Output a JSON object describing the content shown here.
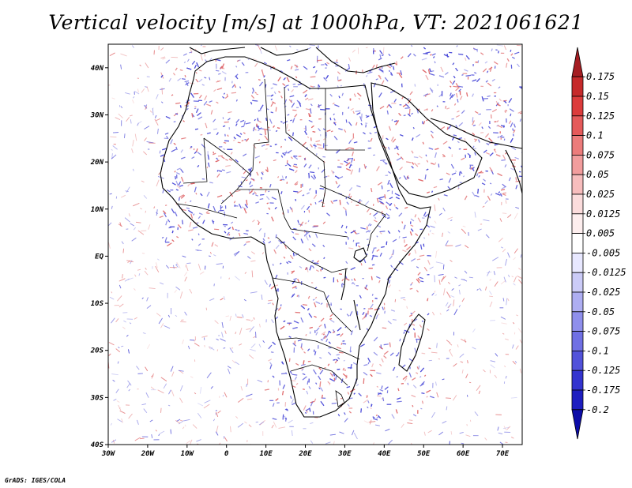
{
  "title": "Vertical velocity [m/s] at 1000hPa, VT: 2021061621",
  "credit": "GrADS: IGES/COLA",
  "map": {
    "lon_labels": [
      "30W",
      "20W",
      "10W",
      "0",
      "10E",
      "20E",
      "30E",
      "40E",
      "50E",
      "60E",
      "70E"
    ],
    "lat_labels": [
      "40N",
      "30N",
      "20N",
      "10N",
      "EQ",
      "10S",
      "20S",
      "30S",
      "40S"
    ],
    "lon_range": [
      -30,
      75
    ],
    "lat_range": [
      -40,
      45
    ],
    "field_colors": {
      "positive": "#e0686a",
      "negative": "#4b4bd8"
    }
  },
  "colorbar": {
    "levels": [
      "0.175",
      "0.15",
      "0.125",
      "0.1",
      "0.075",
      "0.05",
      "0.025",
      "0.0125",
      "0.005",
      "-0.005",
      "-0.0125",
      "-0.025",
      "-0.05",
      "-0.075",
      "-0.1",
      "-0.125",
      "-0.175",
      "-0.2"
    ],
    "colors": [
      "#a51d22",
      "#c62a2b",
      "#dc3c3c",
      "#e55a5a",
      "#ec7c7b",
      "#f29d9d",
      "#f7bdbd",
      "#fbdcdc",
      "#fdeeee",
      "#ffffff",
      "#e8e8ff",
      "#cbcbf7",
      "#aeaef2",
      "#8f8fec",
      "#7070e4",
      "#5252da",
      "#3434cf",
      "#1e1ec0",
      "#0c0ca8"
    ]
  }
}
